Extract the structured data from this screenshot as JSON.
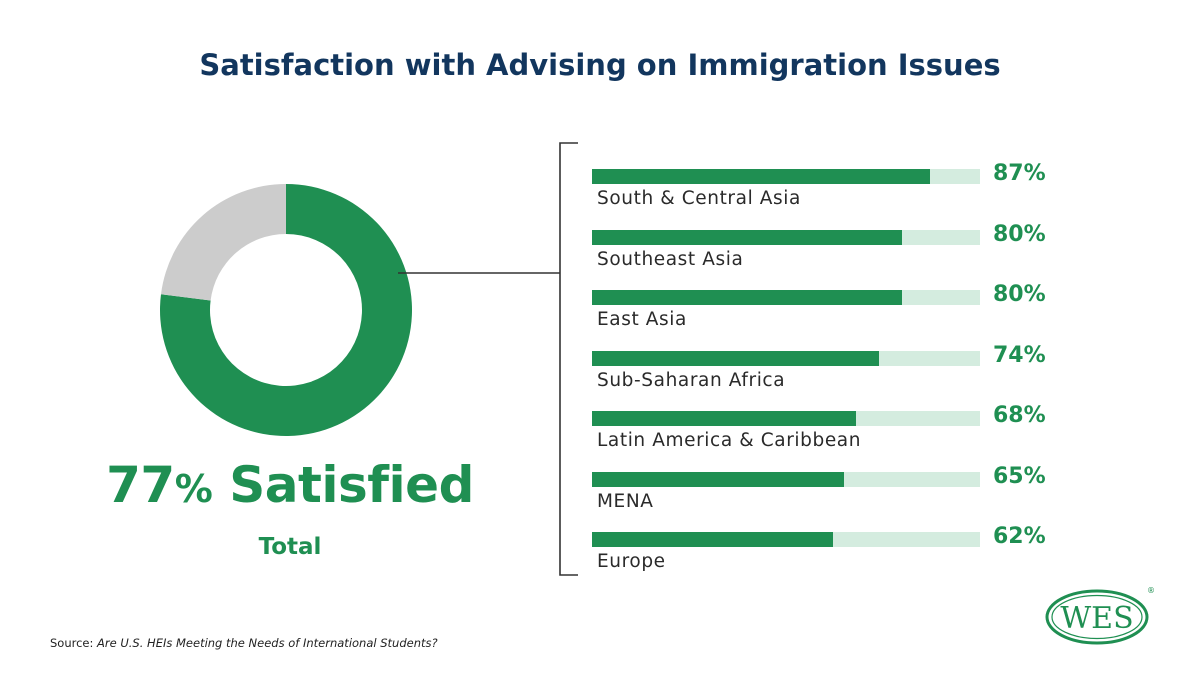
{
  "title": "Satisfaction with Advising on Immigration Issues",
  "summary": {
    "value": "77",
    "unit": "%",
    "label": "Satisfied",
    "sublabel": "Total"
  },
  "source": {
    "prefix": "Source:",
    "text": "Are U.S. HEIs Meeting the Needs of International Students?"
  },
  "logo": {
    "text": "WES",
    "mark": "®"
  },
  "colors": {
    "accent": "#1f8f52",
    "track": "#d4ecdf",
    "remainder": "#cccccc",
    "title": "#12365e"
  },
  "chart_data": [
    {
      "type": "pie",
      "categories": [
        "Satisfied",
        ""
      ],
      "values": [
        77,
        23
      ],
      "title": "",
      "donut": true
    },
    {
      "type": "bar",
      "orientation": "horizontal",
      "categories": [
        "South & Central Asia",
        "Southeast Asia",
        "East Asia",
        "Sub-Saharan Africa",
        "Latin America & Caribbean",
        "MENA",
        "Europe"
      ],
      "values": [
        87,
        80,
        80,
        74,
        68,
        65,
        62
      ],
      "value_labels": [
        "87%",
        "80%",
        "80%",
        "74%",
        "68%",
        "65%",
        "62%"
      ],
      "xlim": [
        0,
        100
      ],
      "title": "",
      "xlabel": "",
      "ylabel": ""
    }
  ]
}
